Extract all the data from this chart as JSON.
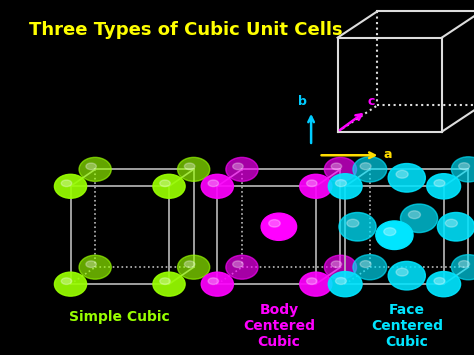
{
  "title": "Three Types of Cubic Unit Cells",
  "title_color": "#FFFF00",
  "title_fontsize": 13,
  "bg_color": "#000000",
  "sc_label": "Simple Cubic",
  "sc_color": "#99FF00",
  "bcc_label": "Body\nCentered\nCubic",
  "bcc_color": "#FF00FF",
  "fcc_label": "Face\nCentered\nCubic",
  "fcc_color": "#00E5FF",
  "cube_edge_color": "#DDDDDD",
  "axis_arrow_color_a": "#FFDD00",
  "axis_arrow_color_b": "#00CCFF",
  "axis_arrow_color_c": "#FF00FF",
  "axis_label_color_a": "#FFDD00",
  "axis_label_color_b": "#00CCFF",
  "axis_label_color_c": "#FF00FF",
  "cell_edge_color": "#BBBBBB"
}
